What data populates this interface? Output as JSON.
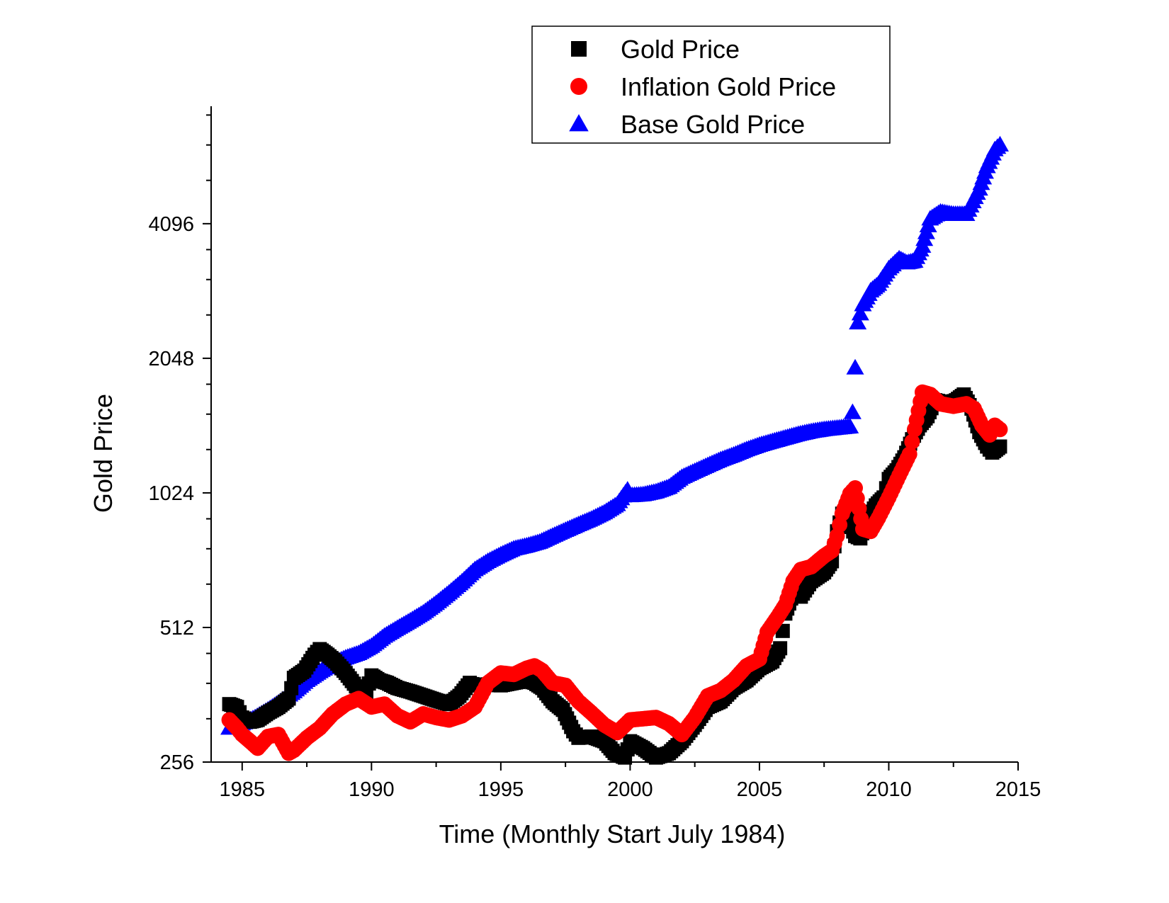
{
  "chart_data": {
    "type": "scatter",
    "title": "",
    "xlabel": "Time (Monthly Start July 1984)",
    "ylabel": "Gold Price",
    "y_scale": "log2",
    "xlim": [
      1983.8,
      2015
    ],
    "ylim": [
      256,
      7500
    ],
    "x_ticks": [
      1985,
      1990,
      1995,
      2000,
      2005,
      2010,
      2015
    ],
    "y_ticks": [
      256,
      512,
      1024,
      2048,
      4096
    ],
    "grid": false,
    "legend_position": "top-center",
    "series": [
      {
        "name": "Gold Price",
        "marker": "square",
        "color": "#000000",
        "points": [
          [
            1984.5,
            345
          ],
          [
            1984.8,
            340
          ],
          [
            1985.0,
            322
          ],
          [
            1985.3,
            315
          ],
          [
            1985.6,
            318
          ],
          [
            1986.0,
            330
          ],
          [
            1986.4,
            340
          ],
          [
            1986.8,
            355
          ],
          [
            1987.0,
            395
          ],
          [
            1987.4,
            410
          ],
          [
            1987.8,
            445
          ],
          [
            1988.0,
            458
          ],
          [
            1988.3,
            445
          ],
          [
            1988.6,
            430
          ],
          [
            1989.0,
            405
          ],
          [
            1989.4,
            378
          ],
          [
            1989.8,
            368
          ],
          [
            1990.0,
            400
          ],
          [
            1990.3,
            390
          ],
          [
            1990.6,
            385
          ],
          [
            1991.0,
            375
          ],
          [
            1991.5,
            368
          ],
          [
            1992.0,
            360
          ],
          [
            1992.5,
            352
          ],
          [
            1993.0,
            345
          ],
          [
            1993.4,
            360
          ],
          [
            1993.8,
            385
          ],
          [
            1994.0,
            380
          ],
          [
            1994.5,
            382
          ],
          [
            1995.0,
            380
          ],
          [
            1995.5,
            385
          ],
          [
            1996.0,
            390
          ],
          [
            1996.3,
            385
          ],
          [
            1996.6,
            375
          ],
          [
            1997.0,
            350
          ],
          [
            1997.4,
            335
          ],
          [
            1997.8,
            300
          ],
          [
            1998.0,
            290
          ],
          [
            1998.5,
            292
          ],
          [
            1999.0,
            285
          ],
          [
            1999.4,
            268
          ],
          [
            1999.8,
            262
          ],
          [
            2000.0,
            285
          ],
          [
            2000.5,
            275
          ],
          [
            2001.0,
            262
          ],
          [
            2001.5,
            268
          ],
          [
            2002.0,
            285
          ],
          [
            2002.5,
            310
          ],
          [
            2003.0,
            340
          ],
          [
            2003.5,
            350
          ],
          [
            2004.0,
            375
          ],
          [
            2004.5,
            390
          ],
          [
            2005.0,
            415
          ],
          [
            2005.5,
            430
          ],
          [
            2005.8,
            460
          ],
          [
            2006.0,
            550
          ],
          [
            2006.3,
            610
          ],
          [
            2006.6,
            600
          ],
          [
            2007.0,
            650
          ],
          [
            2007.5,
            680
          ],
          [
            2007.8,
            720
          ],
          [
            2008.0,
            840
          ],
          [
            2008.2,
            920
          ],
          [
            2008.4,
            900
          ],
          [
            2008.7,
            820
          ],
          [
            2008.9,
            810
          ],
          [
            2009.2,
            900
          ],
          [
            2009.5,
            960
          ],
          [
            2009.8,
            1000
          ],
          [
            2010.0,
            1100
          ],
          [
            2010.3,
            1150
          ],
          [
            2010.6,
            1230
          ],
          [
            2010.9,
            1350
          ],
          [
            2011.2,
            1450
          ],
          [
            2011.5,
            1520
          ],
          [
            2011.8,
            1650
          ],
          [
            2012.0,
            1640
          ],
          [
            2012.3,
            1620
          ],
          [
            2012.6,
            1650
          ],
          [
            2012.9,
            1700
          ],
          [
            2013.2,
            1580
          ],
          [
            2013.5,
            1400
          ],
          [
            2013.8,
            1300
          ],
          [
            2014.0,
            1260
          ],
          [
            2014.3,
            1300
          ]
        ]
      },
      {
        "name": "Inflation Gold Price",
        "marker": "circle",
        "color": "#ff0000",
        "points": [
          [
            1984.5,
            318
          ],
          [
            1984.8,
            305
          ],
          [
            1985.0,
            295
          ],
          [
            1985.3,
            285
          ],
          [
            1985.6,
            275
          ],
          [
            1986.0,
            292
          ],
          [
            1986.4,
            295
          ],
          [
            1986.8,
            268
          ],
          [
            1987.0,
            272
          ],
          [
            1987.5,
            290
          ],
          [
            1988.0,
            305
          ],
          [
            1988.5,
            328
          ],
          [
            1989.0,
            345
          ],
          [
            1989.5,
            355
          ],
          [
            1990.0,
            340
          ],
          [
            1990.5,
            345
          ],
          [
            1991.0,
            325
          ],
          [
            1991.5,
            315
          ],
          [
            1992.0,
            328
          ],
          [
            1992.5,
            322
          ],
          [
            1993.0,
            318
          ],
          [
            1993.5,
            325
          ],
          [
            1994.0,
            340
          ],
          [
            1994.5,
            385
          ],
          [
            1995.0,
            405
          ],
          [
            1995.5,
            402
          ],
          [
            1996.0,
            415
          ],
          [
            1996.3,
            420
          ],
          [
            1996.6,
            410
          ],
          [
            1997.0,
            385
          ],
          [
            1997.5,
            380
          ],
          [
            1998.0,
            350
          ],
          [
            1998.5,
            330
          ],
          [
            1999.0,
            310
          ],
          [
            1999.5,
            298
          ],
          [
            2000.0,
            318
          ],
          [
            2000.5,
            320
          ],
          [
            2001.0,
            322
          ],
          [
            2001.5,
            312
          ],
          [
            2002.0,
            295
          ],
          [
            2002.5,
            322
          ],
          [
            2003.0,
            360
          ],
          [
            2003.5,
            370
          ],
          [
            2004.0,
            390
          ],
          [
            2004.5,
            420
          ],
          [
            2005.0,
            435
          ],
          [
            2005.3,
            500
          ],
          [
            2005.7,
            540
          ],
          [
            2006.0,
            575
          ],
          [
            2006.3,
            650
          ],
          [
            2006.6,
            690
          ],
          [
            2007.0,
            700
          ],
          [
            2007.5,
            740
          ],
          [
            2007.8,
            760
          ],
          [
            2008.0,
            820
          ],
          [
            2008.2,
            920
          ],
          [
            2008.5,
            1020
          ],
          [
            2008.7,
            1050
          ],
          [
            2009.0,
            850
          ],
          [
            2009.3,
            840
          ],
          [
            2009.6,
            900
          ],
          [
            2010.0,
            1000
          ],
          [
            2010.4,
            1120
          ],
          [
            2010.8,
            1250
          ],
          [
            2011.0,
            1420
          ],
          [
            2011.3,
            1720
          ],
          [
            2011.6,
            1700
          ],
          [
            2012.0,
            1620
          ],
          [
            2012.5,
            1600
          ],
          [
            2013.0,
            1620
          ],
          [
            2013.3,
            1580
          ],
          [
            2013.6,
            1450
          ],
          [
            2013.9,
            1380
          ],
          [
            2014.1,
            1450
          ],
          [
            2014.3,
            1420
          ]
        ]
      },
      {
        "name": "Base Gold Price",
        "marker": "triangle",
        "color": "#0000ff",
        "points": [
          [
            1984.5,
            305
          ],
          [
            1985.0,
            312
          ],
          [
            1985.5,
            322
          ],
          [
            1986.0,
            335
          ],
          [
            1986.5,
            350
          ],
          [
            1987.0,
            368
          ],
          [
            1987.5,
            390
          ],
          [
            1988.0,
            408
          ],
          [
            1988.5,
            425
          ],
          [
            1989.0,
            438
          ],
          [
            1989.5,
            448
          ],
          [
            1990.0,
            465
          ],
          [
            1990.5,
            490
          ],
          [
            1991.0,
            510
          ],
          [
            1991.5,
            530
          ],
          [
            1992.0,
            552
          ],
          [
            1992.5,
            580
          ],
          [
            1993.0,
            612
          ],
          [
            1993.5,
            648
          ],
          [
            1994.0,
            690
          ],
          [
            1994.5,
            720
          ],
          [
            1995.0,
            745
          ],
          [
            1995.5,
            768
          ],
          [
            1996.0,
            780
          ],
          [
            1996.5,
            795
          ],
          [
            1997.0,
            820
          ],
          [
            1997.5,
            845
          ],
          [
            1998.0,
            870
          ],
          [
            1998.5,
            895
          ],
          [
            1999.0,
            925
          ],
          [
            1999.5,
            965
          ],
          [
            1999.9,
            1040
          ],
          [
            2000.0,
            1010
          ],
          [
            2000.5,
            1015
          ],
          [
            2001.0,
            1030
          ],
          [
            2001.5,
            1055
          ],
          [
            2002.0,
            1110
          ],
          [
            2002.5,
            1145
          ],
          [
            2003.0,
            1180
          ],
          [
            2003.5,
            1215
          ],
          [
            2004.0,
            1245
          ],
          [
            2004.5,
            1280
          ],
          [
            2005.0,
            1310
          ],
          [
            2005.5,
            1335
          ],
          [
            2006.0,
            1360
          ],
          [
            2006.5,
            1385
          ],
          [
            2007.0,
            1405
          ],
          [
            2007.5,
            1420
          ],
          [
            2008.0,
            1430
          ],
          [
            2008.5,
            1440
          ],
          [
            2008.6,
            1550
          ],
          [
            2008.7,
            1950
          ],
          [
            2008.8,
            2460
          ],
          [
            2009.0,
            2700
          ],
          [
            2009.3,
            2900
          ],
          [
            2009.6,
            3000
          ],
          [
            2010.0,
            3250
          ],
          [
            2010.4,
            3420
          ],
          [
            2010.7,
            3350
          ],
          [
            2011.0,
            3380
          ],
          [
            2011.3,
            3650
          ],
          [
            2011.6,
            4200
          ],
          [
            2012.0,
            4350
          ],
          [
            2012.5,
            4300
          ],
          [
            2013.0,
            4300
          ],
          [
            2013.5,
            4900
          ],
          [
            2013.8,
            5500
          ],
          [
            2014.1,
            6000
          ],
          [
            2014.3,
            6150
          ]
        ]
      }
    ]
  }
}
